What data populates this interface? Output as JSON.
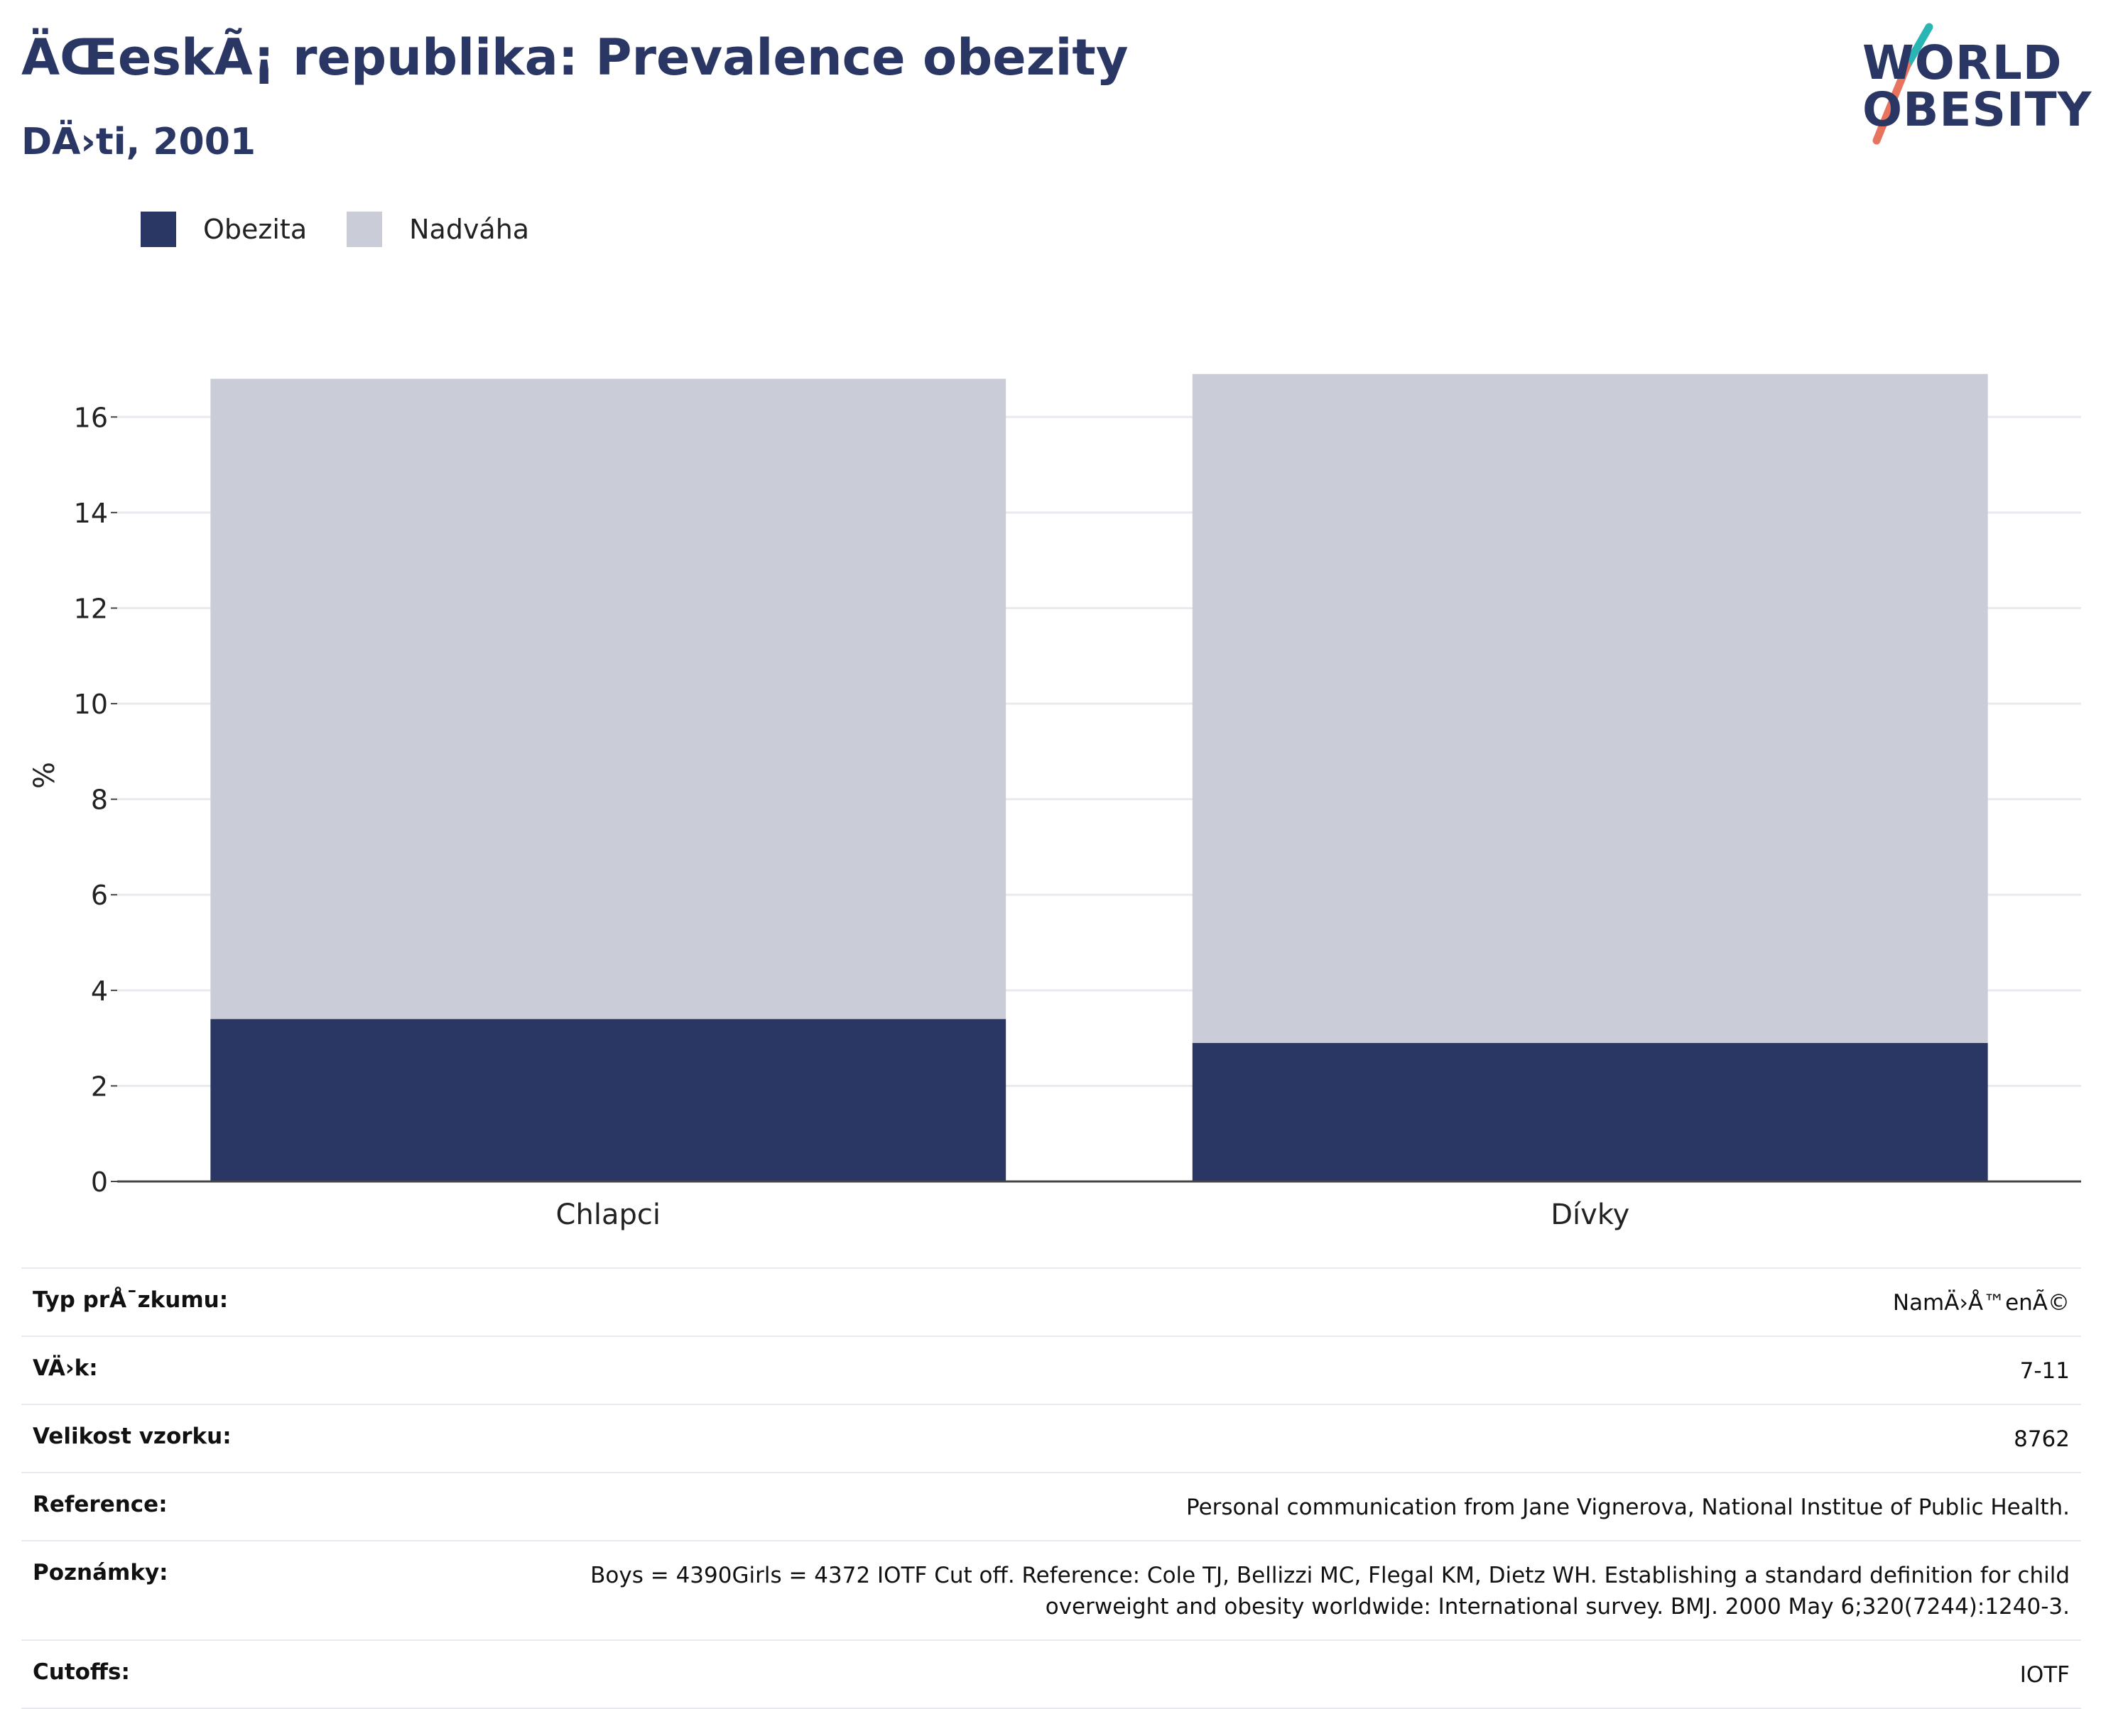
{
  "header": {
    "title": "ÄŒeskÃ¡ republika: Prevalence obezity",
    "subtitle": "DÄ›ti, 2001"
  },
  "logo": {
    "line1": "WORLD",
    "line2": "OBESITY"
  },
  "colors": {
    "obesity": "#2a3664",
    "overweight": "#cacdd8",
    "title": "#2a3664",
    "logo_teal": "#2ab5b5",
    "logo_coral": "#e8735f"
  },
  "chart_data": {
    "type": "bar",
    "stacked": true,
    "categories": [
      "Chlapci",
      "Dívky"
    ],
    "series": [
      {
        "name": "Obezita",
        "values": [
          3.4,
          2.9
        ],
        "color": "#2a3664"
      },
      {
        "name": "Nadváha",
        "values": [
          13.4,
          14.0
        ],
        "color": "#cacdd8"
      }
    ],
    "ylabel": "%",
    "xlabel": "",
    "ylim": [
      0,
      17
    ],
    "yticks": [
      0,
      2,
      4,
      6,
      8,
      10,
      12,
      14,
      16
    ],
    "grid": true,
    "legend_position": "top-left"
  },
  "info": {
    "rows": [
      {
        "label": "Typ prÅ¯zkumu:",
        "value": "NamÄ›Å™enÃ©"
      },
      {
        "label": "VÄ›k:",
        "value": "7-11"
      },
      {
        "label": "Velikost vzorku:",
        "value": "8762"
      },
      {
        "label": "Reference:",
        "value": "Personal communication from Jane Vignerova, National Institue of Public Health."
      },
      {
        "label": "Poznámky:",
        "value": "Boys = 4390Girls = 4372 IOTF Cut off. Reference: Cole TJ, Bellizzi MC, Flegal KM, Dietz WH. Establishing a standard definition for child overweight and obesity worldwide: International survey. BMJ. 2000 May 6;320(7244):1240-3."
      },
      {
        "label": "Cutoffs:",
        "value": "IOTF"
      }
    ]
  }
}
